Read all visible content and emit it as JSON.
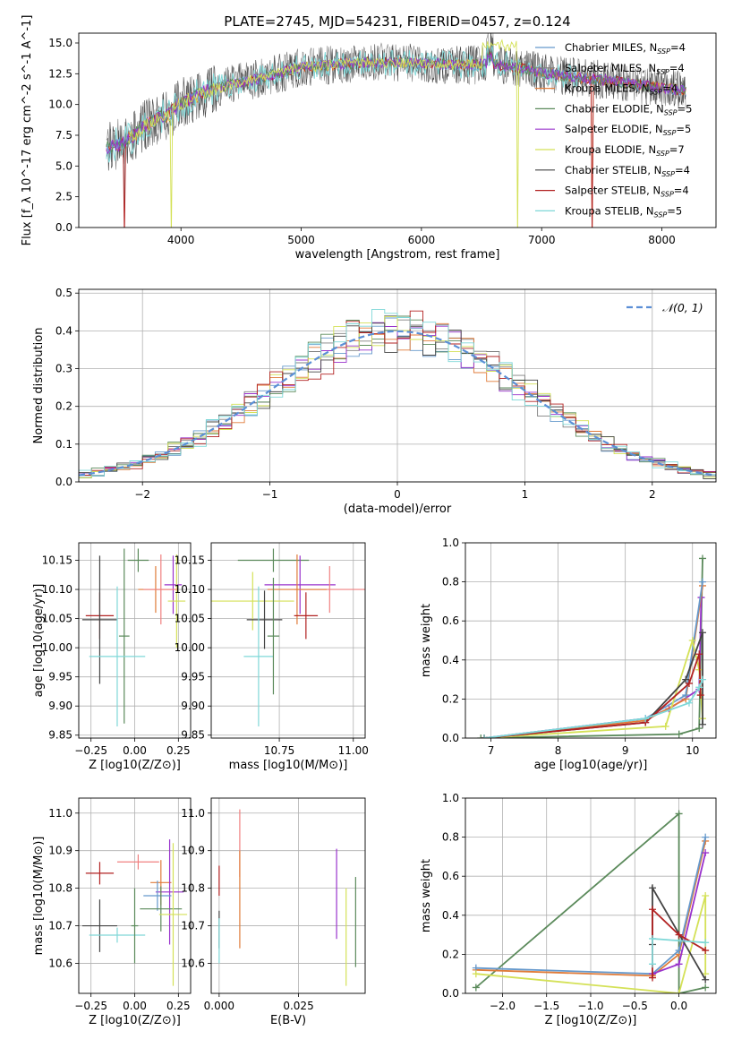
{
  "figure_title": "PLATE=2745, MJD=54231, FIBERID=0457, z=0.124",
  "chart_data": [
    {
      "id": "spectrum",
      "type": "line",
      "xlabel": "wavelength [Angstrom, rest frame]",
      "ylabel": "Flux [f_λ 10^-17 erg cm^-2 s^-1 A^-1]",
      "xlim": [
        3150,
        8450
      ],
      "ylim": [
        0,
        15.8
      ],
      "xticks": [
        "4000",
        "5000",
        "6000",
        "7000",
        "8000"
      ],
      "yticks": [
        "0.0",
        "2.5",
        "5.0",
        "7.5",
        "10.0",
        "12.5",
        "15.0"
      ],
      "continuum": {
        "x": [
          3380,
          3500,
          3600,
          3700,
          3800,
          3900,
          4000,
          4200,
          4400,
          4600,
          4800,
          5000,
          5200,
          5500,
          5800,
          6100,
          6400,
          6600,
          6800,
          7000,
          7200,
          7500,
          7800,
          8200
        ],
        "y": [
          6.5,
          6.8,
          7.4,
          8.3,
          8.8,
          9.2,
          10.1,
          11.0,
          11.6,
          12.0,
          12.5,
          13.0,
          13.2,
          13.4,
          13.4,
          13.3,
          13.2,
          13.3,
          13.0,
          12.6,
          12.3,
          12.0,
          11.6,
          11.1
        ]
      },
      "series": [
        {
          "name": "Chabrier MILES, N_SSP=4",
          "color": "#6699cc"
        },
        {
          "name": "Salpeter MILES, N_SSP=4",
          "color": "#808080"
        },
        {
          "name": "Kroupa MILES, N_SSP=4",
          "color": "#e07b39"
        },
        {
          "name": "Chabrier ELODIE, N_SSP=5",
          "color": "#5b8a5b"
        },
        {
          "name": "Salpeter ELODIE, N_SSP=5",
          "color": "#9932cc"
        },
        {
          "name": "Kroupa ELODIE, N_SSP=7",
          "color": "#d4e157"
        },
        {
          "name": "Chabrier STELIB, N_SSP=4",
          "color": "#444444"
        },
        {
          "name": "Salpeter STELIB, N_SSP=4",
          "color": "#b22222"
        },
        {
          "name": "Kroupa STELIB, N_SSP=5",
          "color": "#7fd8d8"
        }
      ]
    },
    {
      "id": "residuals",
      "type": "histogram",
      "xlabel": "(data-model)/error",
      "ylabel": "Normed distribution",
      "xlim": [
        -2.5,
        2.5
      ],
      "ylim": [
        0,
        0.51
      ],
      "xticks": [
        "−2",
        "−1",
        "0",
        "1",
        "2"
      ],
      "yticks": [
        "0.0",
        "0.1",
        "0.2",
        "0.3",
        "0.4",
        "0.5"
      ],
      "grid": true,
      "legend": "𝒩(0, 1)",
      "bin_width": 0.1
    },
    {
      "id": "age-vs-Z",
      "type": "scatter",
      "xlabel": "Z [log10(Z/Z⊙)]",
      "ylabel": "age [log10(age/yr)]",
      "xlim": [
        -0.32,
        0.32
      ],
      "ylim": [
        9.845,
        10.18
      ],
      "xticks": [
        "−0.25",
        "0.00",
        "0.25"
      ],
      "yticks": [
        "9.85",
        "9.90",
        "9.95",
        "10.00",
        "10.05",
        "10.10",
        "10.15"
      ],
      "points": [
        {
          "x": 0.02,
          "xerr": 0.06,
          "y": 10.15,
          "yerr": 0.02,
          "color": "#5b8a5b"
        },
        {
          "x": 0.22,
          "xerr": 0.05,
          "y": 10.108,
          "yerr": 0.05,
          "color": "#9932cc"
        },
        {
          "x": 0.12,
          "xerr": 0.1,
          "y": 10.1,
          "yerr": 0.04,
          "color": "#e07b39"
        },
        {
          "x": 0.24,
          "xerr": 0.05,
          "y": 10.08,
          "yerr": 0.08,
          "color": "#d4e157"
        },
        {
          "x": -0.2,
          "xerr": 0.08,
          "y": 10.055,
          "yerr": 0.04,
          "color": "#b22222"
        },
        {
          "x": -0.2,
          "xerr": 0.1,
          "y": 10.048,
          "yerr": 0.11,
          "color": "#444444"
        },
        {
          "x": -0.06,
          "xerr": 0.03,
          "y": 10.02,
          "yerr": 0.15,
          "color": "#5b8a5b"
        },
        {
          "x": -0.1,
          "xerr": 0.16,
          "y": 9.985,
          "yerr": 0.12,
          "color": "#7fd8d8"
        },
        {
          "x": 0.15,
          "xerr": 0.1,
          "y": 10.1,
          "yerr": 0.06,
          "color": "#f08080"
        }
      ]
    },
    {
      "id": "age-vs-mass",
      "type": "scatter",
      "xlabel": "mass [log10(M/M⊙)]",
      "ylabel": "",
      "xlim": [
        10.52,
        11.04
      ],
      "ylim": [
        9.845,
        10.18
      ],
      "xticks": [
        "10.75",
        "11.00"
      ],
      "yticks": [
        "9.85",
        "9.90",
        "9.95",
        "10.00",
        "10.05",
        "10.10",
        "10.15"
      ],
      "points": [
        {
          "x": 10.73,
          "xerr": 0.12,
          "y": 10.15,
          "yerr": 0.02,
          "color": "#5b8a5b"
        },
        {
          "x": 10.82,
          "xerr": 0.12,
          "y": 10.108,
          "yerr": 0.05,
          "color": "#9932cc"
        },
        {
          "x": 10.92,
          "xerr": 0.12,
          "y": 10.1,
          "yerr": 0.04,
          "color": "#f08080"
        },
        {
          "x": 10.81,
          "xerr": 0.1,
          "y": 10.1,
          "yerr": 0.06,
          "color": "#e07b39"
        },
        {
          "x": 10.66,
          "xerr": 0.14,
          "y": 10.08,
          "yerr": 0.05,
          "color": "#d4e157"
        },
        {
          "x": 10.7,
          "xerr": 0.06,
          "y": 10.048,
          "yerr": 0.05,
          "color": "#444444"
        },
        {
          "x": 10.84,
          "xerr": 0.04,
          "y": 10.055,
          "yerr": 0.04,
          "color": "#b22222"
        },
        {
          "x": 10.68,
          "xerr": 0.05,
          "y": 9.985,
          "yerr": 0.12,
          "color": "#7fd8d8"
        },
        {
          "x": 10.73,
          "xerr": 0.02,
          "y": 10.02,
          "yerr": 0.1,
          "color": "#5b8a5b"
        }
      ]
    },
    {
      "id": "massweight-vs-age",
      "type": "line",
      "xlabel": "age [log10(age/yr)]",
      "ylabel": "mass weight",
      "xlim": [
        6.62,
        10.35
      ],
      "ylim": [
        0,
        1.0
      ],
      "xticks": [
        "7",
        "8",
        "9",
        "10"
      ],
      "yticks": [
        "0.0",
        "0.2",
        "0.4",
        "0.6",
        "0.8",
        "1.0"
      ],
      "grid": true,
      "series": [
        {
          "color": "#5b8a5b",
          "x": [
            6.85,
            9.8,
            10.1,
            10.15
          ],
          "y": [
            0.0,
            0.02,
            0.05,
            0.92
          ]
        },
        {
          "color": "#9932cc",
          "x": [
            6.9,
            9.3,
            9.65,
            10.1,
            10.13
          ],
          "y": [
            0.0,
            0.1,
            0.15,
            0.25,
            0.72
          ]
        },
        {
          "color": "#e07b39",
          "x": [
            6.9,
            9.3,
            9.9,
            10.15
          ],
          "y": [
            0.0,
            0.09,
            0.2,
            0.78
          ]
        },
        {
          "color": "#6699cc",
          "x": [
            6.9,
            9.3,
            9.9,
            10.15
          ],
          "y": [
            0.0,
            0.1,
            0.22,
            0.8
          ]
        },
        {
          "color": "#d4e157",
          "x": [
            6.9,
            9.6,
            10.0,
            10.1,
            10.15
          ],
          "y": [
            0.0,
            0.06,
            0.5,
            0.35,
            0.1
          ]
        },
        {
          "color": "#444444",
          "x": [
            6.9,
            9.3,
            9.9,
            10.15,
            10.15
          ],
          "y": [
            0.0,
            0.08,
            0.3,
            0.54,
            0.07
          ]
        },
        {
          "color": "#b22222",
          "x": [
            6.9,
            9.3,
            9.95,
            10.1,
            10.12
          ],
          "y": [
            0.0,
            0.08,
            0.28,
            0.43,
            0.22
          ]
        },
        {
          "color": "#7fd8d8",
          "x": [
            6.9,
            9.3,
            9.95,
            10.1,
            10.15
          ],
          "y": [
            0.0,
            0.1,
            0.18,
            0.26,
            0.3
          ]
        }
      ]
    },
    {
      "id": "mass-vs-Z",
      "type": "scatter",
      "xlabel": "Z [log10(Z/Z⊙)]",
      "ylabel": "mass [log10(M/M⊙)]",
      "xlim": [
        -0.32,
        0.32
      ],
      "ylim": [
        10.52,
        11.04
      ],
      "xticks": [
        "−0.25",
        "0.00",
        "0.25"
      ],
      "yticks": [
        "10.6",
        "10.7",
        "10.8",
        "10.9",
        "11.0"
      ],
      "points": [
        {
          "x": -0.2,
          "xerr": 0.08,
          "y": 10.84,
          "yerr": 0.03,
          "color": "#b22222"
        },
        {
          "x": 0.02,
          "xerr": 0.12,
          "y": 10.87,
          "yerr": 0.02,
          "color": "#f08080"
        },
        {
          "x": 0.15,
          "xerr": 0.06,
          "y": 10.815,
          "yerr": 0.06,
          "color": "#e07b39"
        },
        {
          "x": 0.2,
          "xerr": 0.08,
          "y": 10.79,
          "yerr": 0.14,
          "color": "#9932cc"
        },
        {
          "x": 0.13,
          "xerr": 0.08,
          "y": 10.78,
          "yerr": 0.04,
          "color": "#6699cc"
        },
        {
          "x": 0.15,
          "xerr": 0.12,
          "y": 10.745,
          "yerr": 0.06,
          "color": "#5b8a5b"
        },
        {
          "x": 0.22,
          "xerr": 0.08,
          "y": 10.73,
          "yerr": 0.19,
          "color": "#d4e157"
        },
        {
          "x": -0.2,
          "xerr": 0.1,
          "y": 10.7,
          "yerr": 0.07,
          "color": "#444444"
        },
        {
          "x": -0.1,
          "xerr": 0.16,
          "y": 10.675,
          "yerr": 0.02,
          "color": "#7fd8d8"
        },
        {
          "x": 0.0,
          "xerr": 0.02,
          "y": 10.7,
          "yerr": 0.1,
          "color": "#5b8a5b"
        }
      ]
    },
    {
      "id": "mass-vs-EBV",
      "type": "scatter",
      "xlabel": "E(B-V)",
      "ylabel": "",
      "xlim": [
        -0.0025,
        0.046
      ],
      "ylim": [
        10.52,
        11.04
      ],
      "xticks": [
        "0.000",
        "0.025"
      ],
      "yticks": [
        "10.6",
        "10.7",
        "10.8",
        "10.9",
        "11.0"
      ],
      "points": [
        {
          "x": 0.0,
          "y": 10.82,
          "yerr": 0.04,
          "color": "#b22222"
        },
        {
          "x": 0.0,
          "y": 10.69,
          "yerr": 0.05,
          "color": "#444444"
        },
        {
          "x": 0.0,
          "y": 10.66,
          "yerr": 0.06,
          "color": "#7fd8d8"
        },
        {
          "x": 0.0065,
          "y": 10.92,
          "yerr": 0.09,
          "color": "#f08080"
        },
        {
          "x": 0.0065,
          "y": 10.77,
          "yerr": 0.13,
          "color": "#e07b39"
        },
        {
          "x": 0.037,
          "y": 10.785,
          "yerr": 0.12,
          "color": "#9932cc"
        },
        {
          "x": 0.043,
          "y": 10.71,
          "yerr": 0.12,
          "color": "#5b8a5b"
        },
        {
          "x": 0.04,
          "y": 10.67,
          "yerr": 0.13,
          "color": "#d4e157"
        }
      ]
    },
    {
      "id": "massweight-vs-Z",
      "type": "line",
      "xlabel": "Z [log10(Z/Z⊙)]",
      "ylabel": "mass weight",
      "xlim": [
        -2.42,
        0.42
      ],
      "ylim": [
        0,
        1.0
      ],
      "xticks": [
        "−2.0",
        "−1.5",
        "−1.0",
        "−0.5",
        "0.0"
      ],
      "yticks": [
        "0.0",
        "0.2",
        "0.4",
        "0.6",
        "0.8",
        "1.0"
      ],
      "grid": true,
      "series": [
        {
          "color": "#5b8a5b",
          "x": [
            -2.3,
            0.0,
            0.0,
            0.3
          ],
          "y": [
            0.03,
            0.92,
            0.0,
            0.03
          ]
        },
        {
          "color": "#e07b39",
          "x": [
            -2.3,
            -0.3,
            0.0,
            0.3
          ],
          "y": [
            0.12,
            0.09,
            0.2,
            0.78
          ]
        },
        {
          "color": "#6699cc",
          "x": [
            -2.3,
            -0.3,
            0.0,
            0.3
          ],
          "y": [
            0.13,
            0.1,
            0.22,
            0.8
          ]
        },
        {
          "color": "#9932cc",
          "x": [
            -0.3,
            0.0,
            0.3
          ],
          "y": [
            0.1,
            0.15,
            0.72
          ]
        },
        {
          "color": "#d4e157",
          "x": [
            -2.3,
            0.0,
            0.3,
            0.3
          ],
          "y": [
            0.1,
            0.0,
            0.5,
            0.1
          ]
        },
        {
          "color": "#444444",
          "x": [
            -0.3,
            -0.3,
            0.3
          ],
          "y": [
            0.25,
            0.54,
            0.07
          ]
        },
        {
          "color": "#b22222",
          "x": [
            -0.3,
            -0.3,
            0.0,
            0.3
          ],
          "y": [
            0.08,
            0.43,
            0.3,
            0.22
          ]
        },
        {
          "color": "#7fd8d8",
          "x": [
            -0.3,
            -0.3,
            0.3
          ],
          "y": [
            0.15,
            0.28,
            0.26
          ]
        }
      ]
    }
  ]
}
